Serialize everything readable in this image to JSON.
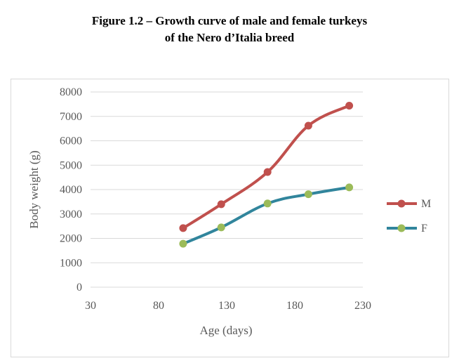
{
  "figure": {
    "title_line1": "Figure 1.2 – Growth curve of male and female turkeys",
    "title_line2": "of the Nero d’Italia breed"
  },
  "chart_data": {
    "type": "line",
    "xlabel": "Age (days)",
    "ylabel": "Body weight (g)",
    "xlim": [
      30,
      230
    ],
    "ylim": [
      0,
      8000
    ],
    "xticks": [
      30,
      80,
      130,
      180,
      230
    ],
    "yticks": [
      0,
      1000,
      2000,
      3000,
      4000,
      5000,
      6000,
      7000,
      8000
    ],
    "grid": "horizontal",
    "legend": "right",
    "series": [
      {
        "name": "M",
        "color": "#c0504d",
        "marker_color": "#c0504d",
        "x": [
          98,
          126,
          160,
          190,
          220
        ],
        "y": [
          2420,
          3400,
          4720,
          6620,
          7440
        ]
      },
      {
        "name": "F",
        "color": "#31859c",
        "marker_color": "#9bbb59",
        "x": [
          98,
          126,
          160,
          190,
          220
        ],
        "y": [
          1780,
          2450,
          3430,
          3810,
          4090
        ]
      }
    ]
  }
}
